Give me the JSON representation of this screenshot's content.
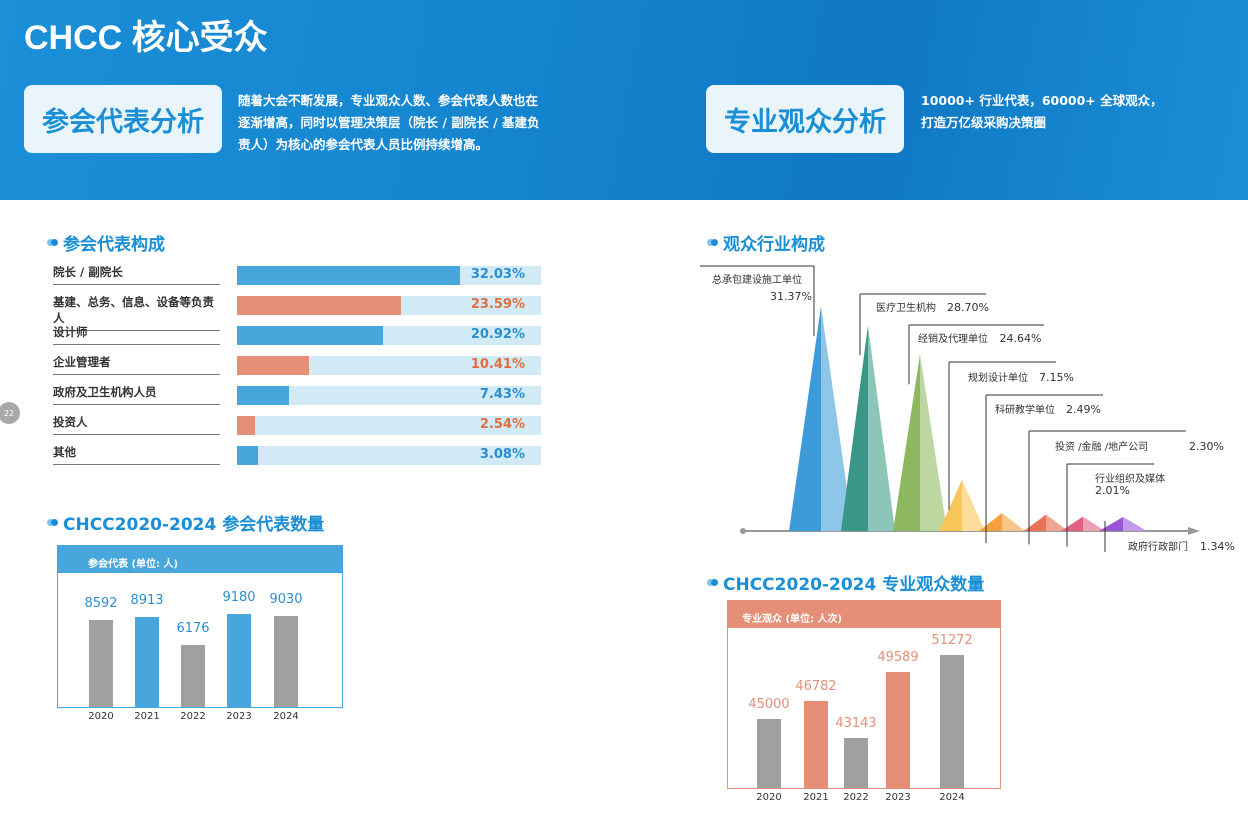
{
  "header": {
    "title": "CHCC 核心受众"
  },
  "delegates": {
    "box": "参会代表分析",
    "intro": [
      "随着大会不断发展，专业观众人数、参会代表人数也在",
      "逐渐增高，同时以管理决策层（院长 / 副院长 / 基建负",
      "责人）为核心的参会代表人员比例持续增高。"
    ]
  },
  "visitors": {
    "box": "专业观众分析",
    "intro": [
      "10000+ 行业代表，60000+ 全球观众，",
      "打造万亿级采购决策圈"
    ]
  },
  "page_number": "22",
  "colors": {
    "blue": "#47a7dd",
    "salmon": "#e58f78",
    "gray": "#a0a0a0",
    "track": "#d2e9f6",
    "accent": "#1a8fd6"
  },
  "chart_data": [
    {
      "type": "bar",
      "orientation": "horizontal",
      "title": "参会代表构成",
      "categories": [
        "院长 / 副院长",
        "基建、总务、信息、设备等负责人",
        "设计师",
        "企业管理者",
        "政府及卫生机构人员",
        "投资人",
        "其他"
      ],
      "values": [
        32.03,
        23.59,
        20.92,
        10.41,
        7.43,
        2.54,
        3.08
      ],
      "labels": [
        "32.03%",
        "23.59%",
        "20.92%",
        "10.41%",
        "7.43%",
        "2.54%",
        "3.08%"
      ]
    },
    {
      "type": "area",
      "title": "观众行业构成",
      "categories": [
        "总承包建设施工单位",
        "医疗卫生机构",
        "经销及代理单位",
        "规划设计单位",
        "科研教学单位",
        "投资 /金融 /地产公司",
        "行业组织及媒体",
        "政府行政部门"
      ],
      "values": [
        31.37,
        28.7,
        24.64,
        7.15,
        2.49,
        2.3,
        2.01,
        1.34
      ],
      "labels": [
        "31.37%",
        "28.70%",
        "24.64%",
        "7.15%",
        "2.49%",
        "2.30%",
        "2.01%",
        "1.34%"
      ],
      "colors": [
        [
          "#3c9bd8",
          "#8ec6ea"
        ],
        [
          "#3a9686",
          "#8cc6b8"
        ],
        [
          "#8db85f",
          "#bcd7a0"
        ],
        [
          "#f7c75a",
          "#fbdc98"
        ],
        [
          "#f5a03a",
          "#f9c48a"
        ],
        [
          "#e8735a",
          "#f0a593"
        ],
        [
          "#e0607f",
          "#eba2b5"
        ],
        [
          "#9b54d8",
          "#c39ae8"
        ]
      ]
    },
    {
      "type": "bar",
      "title": "CHCC2020-2024 参会代表数量",
      "legend": "参会代表 (单位: 人)",
      "categories": [
        "2020",
        "2021",
        "2022",
        "2023",
        "2024"
      ],
      "values": [
        8592,
        8913,
        6176,
        9180,
        9030
      ],
      "bar_colors": [
        "#a0a0a0",
        "#47a7dd",
        "#a0a0a0",
        "#47a7dd",
        "#a0a0a0"
      ]
    },
    {
      "type": "bar",
      "title": "CHCC2020-2024 专业观众数量",
      "legend": "专业观众 (单位: 人次)",
      "categories": [
        "2020",
        "2021",
        "2022",
        "2023",
        "2024"
      ],
      "values": [
        45000,
        46782,
        43143,
        49589,
        51272
      ],
      "bar_colors": [
        "#a0a0a0",
        "#e58f78",
        "#a0a0a0",
        "#e58f78",
        "#a0a0a0"
      ]
    }
  ]
}
